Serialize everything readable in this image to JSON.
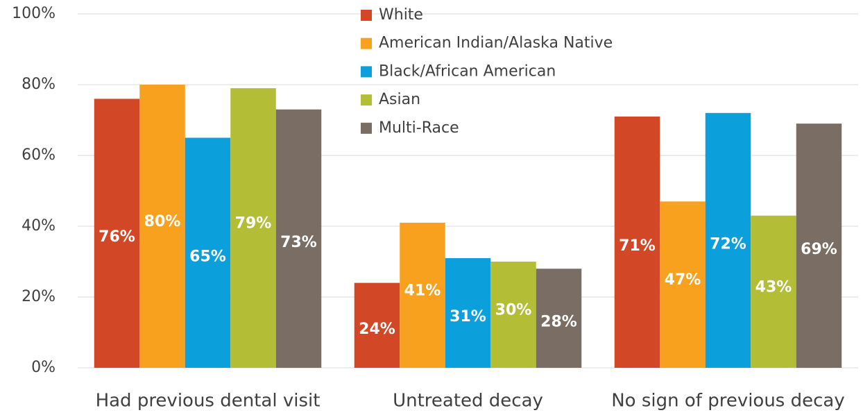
{
  "chart_data": {
    "type": "bar",
    "categories": [
      "Had previous dental visit",
      "Untreated decay",
      "No sign of previous decay"
    ],
    "series": [
      {
        "name": "White",
        "color": "#d24726",
        "values": [
          76,
          24,
          71
        ],
        "value_labels": [
          "76%",
          "24%",
          "71%"
        ]
      },
      {
        "name": "American Indian/Alaska Native",
        "color": "#f8a11f",
        "values": [
          80,
          41,
          47
        ],
        "value_labels": [
          "80%",
          "41%",
          "47%"
        ]
      },
      {
        "name": "Black/African American",
        "color": "#0b9fdc",
        "values": [
          65,
          31,
          72
        ],
        "value_labels": [
          "65%",
          "31%",
          "72%"
        ]
      },
      {
        "name": "Asian",
        "color": "#b4bd36",
        "values": [
          79,
          30,
          43
        ],
        "value_labels": [
          "79%",
          "30%",
          "43%"
        ]
      },
      {
        "name": "Multi-Race",
        "color": "#7a6e64",
        "values": [
          73,
          28,
          69
        ],
        "value_labels": [
          "73%",
          "28%",
          "69%"
        ]
      }
    ],
    "ylim": [
      0,
      100
    ],
    "yticks": [
      {
        "value": 0,
        "label": "0%"
      },
      {
        "value": 20,
        "label": "20%"
      },
      {
        "value": 40,
        "label": "40%"
      },
      {
        "value": 60,
        "label": "60%"
      },
      {
        "value": 80,
        "label": "80%"
      },
      {
        "value": 100,
        "label": "100%"
      }
    ],
    "grid": true
  }
}
